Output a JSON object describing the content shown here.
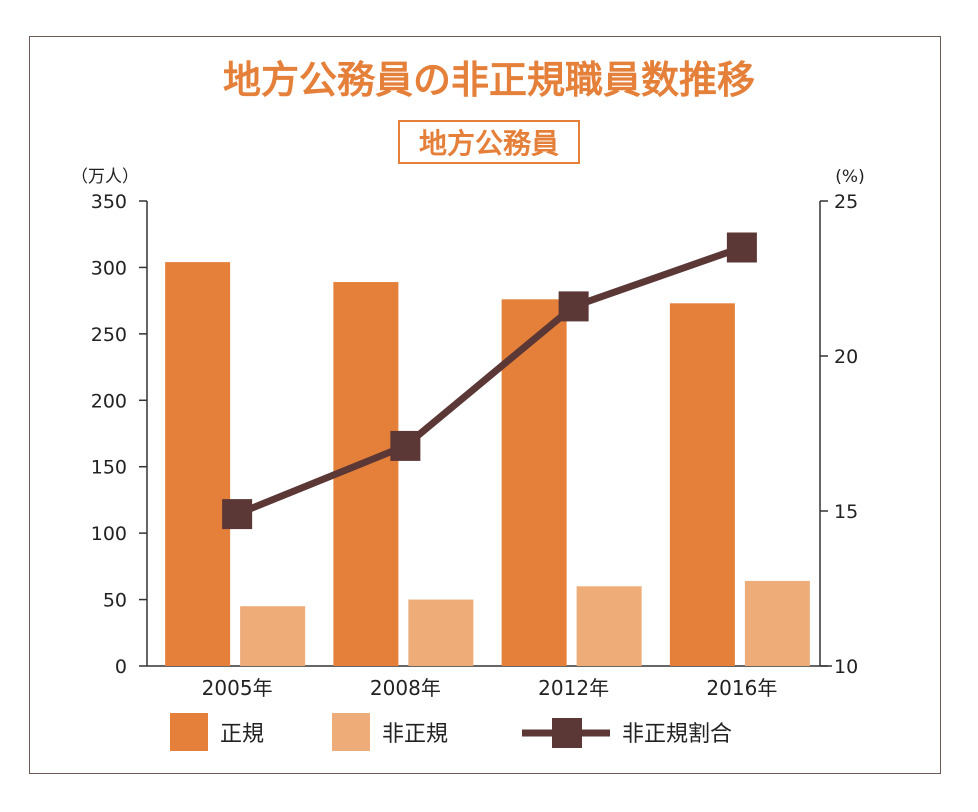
{
  "chart_data": {
    "type": "bar",
    "title": "地方公務員の非正規職員数推移",
    "subtitle": "地方公務員",
    "categories": [
      "2005年",
      "2008年",
      "2012年",
      "2016年"
    ],
    "y_left": {
      "unit_label": "（万人）",
      "ylim": [
        0,
        350
      ],
      "ticks": [
        0,
        50,
        100,
        150,
        200,
        250,
        300,
        350
      ]
    },
    "y_right": {
      "unit_label": "(%)",
      "ylim": [
        10,
        25
      ],
      "ticks": [
        10,
        15,
        20,
        25
      ]
    },
    "series": [
      {
        "name": "正規",
        "type": "bar",
        "axis": "left",
        "color": "#e5803a",
        "values": [
          304,
          289,
          276,
          273
        ]
      },
      {
        "name": "非正規",
        "type": "bar",
        "axis": "left",
        "color": "#eeac78",
        "values": [
          45,
          50,
          60,
          64
        ]
      },
      {
        "name": "非正規割合",
        "type": "line",
        "axis": "right",
        "color": "#5b3736",
        "values": [
          14.9,
          17.1,
          21.6,
          23.5
        ]
      }
    ],
    "legend_position": "bottom",
    "grid": false,
    "colors": {
      "title": "#e5803a",
      "frame": "#6b5a55",
      "axis": "#333333",
      "text": "#222222"
    }
  }
}
